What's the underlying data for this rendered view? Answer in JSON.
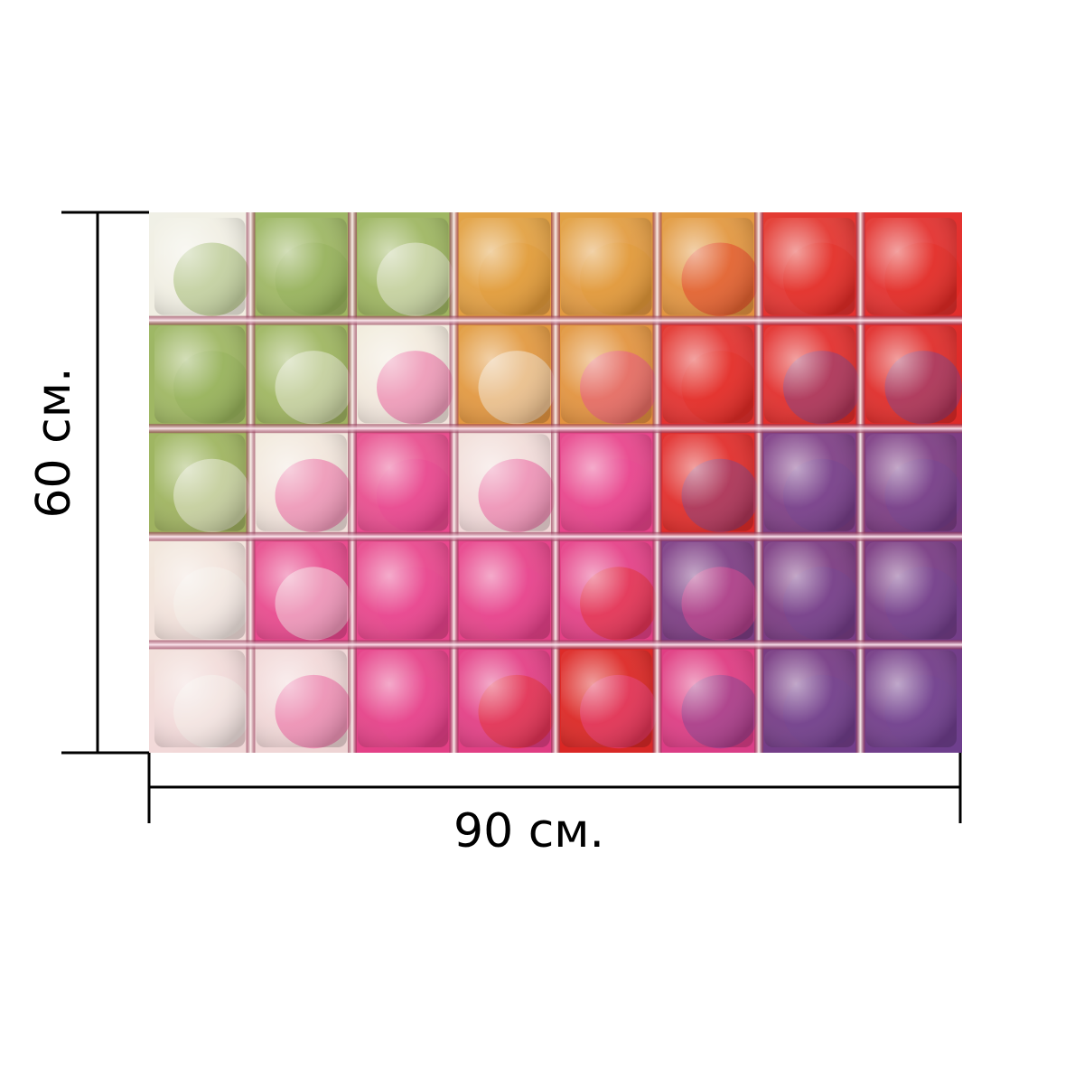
{
  "product_image": {
    "tile_columns": 8,
    "tile_rows": 5,
    "palette": {
      "white": "#f4f1ea",
      "green": "#8fae52",
      "orange": "#e0962e",
      "red": "#e2261c",
      "pink": "#e8408e",
      "purple": "#6e3f8e",
      "grout_light": "#fff7f2",
      "grout_dark": "#7a1f3a"
    }
  },
  "dimensions": {
    "width_label": "90 см.",
    "height_label": "60 см.",
    "line_color": "#000000"
  }
}
